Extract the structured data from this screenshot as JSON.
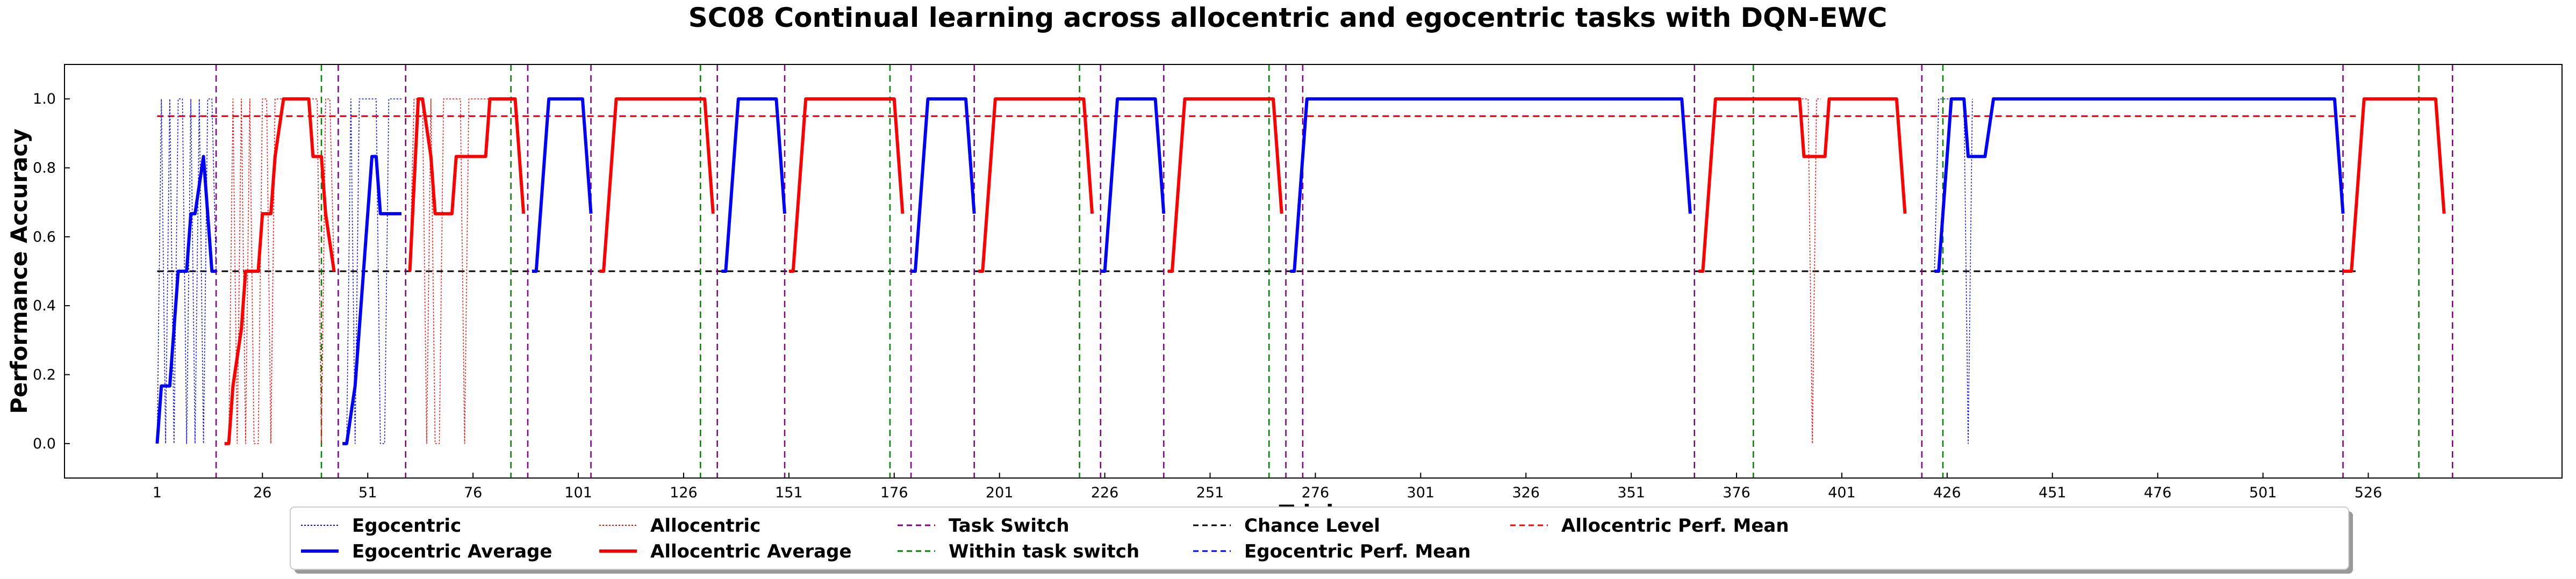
{
  "chart_data": {
    "type": "line",
    "title": "SC08 Continual learning across allocentric and egocentric tasks with DQN-EWC",
    "ylabel": "Performance Accuracy",
    "xlabel": "Trials",
    "xlim": [
      -21,
      572
    ],
    "ylim": [
      -0.1,
      1.1
    ],
    "x_ticks": [
      1,
      26,
      51,
      76,
      101,
      126,
      151,
      176,
      201,
      226,
      251,
      276,
      301,
      326,
      351,
      376,
      401,
      426,
      451,
      476,
      501,
      526
    ],
    "y_ticks": [
      "0.0",
      "0.2",
      "0.4",
      "0.6",
      "0.8",
      "1.0"
    ],
    "grid": false,
    "legend_position": "bottom-center",
    "colors": {
      "egocentric": "#0000ff",
      "allocentric": "#ff0000",
      "task_switch": "#800080",
      "within_task_switch": "#008000",
      "chance": "#000000"
    },
    "legend": [
      {
        "label": "Egocentric",
        "color": "#0000ff",
        "style": "dotted",
        "width": 1
      },
      {
        "label": "Egocentric Average",
        "color": "#0000ff",
        "style": "solid",
        "width": 6
      },
      {
        "label": "Allocentric",
        "color": "#ff0000",
        "style": "dotted",
        "width": 1
      },
      {
        "label": "Allocentric Average",
        "color": "#ff0000",
        "style": "solid",
        "width": 6
      },
      {
        "label": "Task Switch",
        "color": "#800080",
        "style": "dashed",
        "width": 2
      },
      {
        "label": "Within task switch",
        "color": "#008000",
        "style": "dashed",
        "width": 2
      },
      {
        "label": "Chance Level",
        "color": "#000000",
        "style": "dashed",
        "width": 2
      },
      {
        "label": "Egocentric Perf. Mean",
        "color": "#0000ff",
        "style": "dashed",
        "width": 2
      },
      {
        "label": "Allocentric Perf. Mean",
        "color": "#ff0000",
        "style": "dashed",
        "width": 2
      }
    ],
    "task_switches": [
      15,
      44,
      60,
      89,
      104,
      134,
      150,
      180,
      195,
      225,
      240,
      269,
      273,
      366,
      420,
      520,
      546
    ],
    "within_task_switches": [
      40,
      85,
      130,
      175,
      220,
      265,
      380,
      425,
      538
    ],
    "chance_level": {
      "value": 0.5,
      "x_range": [
        1,
        523
      ]
    },
    "egocentric_perf_mean": {
      "value": 0.95,
      "x_range": [
        1,
        523
      ]
    },
    "allocentric_perf_mean": {
      "value": 0.95,
      "x_range": [
        1,
        523
      ]
    },
    "series": [
      {
        "name": "Egocentric Average",
        "color": "#0000ff",
        "segments": [
          {
            "x": [
              1,
              2,
              4,
              6,
              8,
              9,
              10,
              12,
              14,
              15
            ],
            "y": [
              0.0,
              0.167,
              0.167,
              0.5,
              0.5,
              0.667,
              0.667,
              0.833,
              0.5,
              0.5
            ]
          },
          {
            "x": [
              45,
              46,
              48,
              50,
              51,
              52,
              53,
              54,
              55,
              57,
              59
            ],
            "y": [
              0.0,
              0.0,
              0.167,
              0.5,
              0.667,
              0.833,
              0.833,
              0.667,
              0.667,
              0.667,
              0.667
            ]
          },
          {
            "x": [
              90,
              91,
              94,
              102,
              104
            ],
            "y": [
              0.5,
              0.5,
              1.0,
              1.0,
              0.667
            ]
          },
          {
            "x": [
              135,
              136,
              139,
              148,
              150
            ],
            "y": [
              0.5,
              0.5,
              1.0,
              1.0,
              0.667
            ]
          },
          {
            "x": [
              180,
              181,
              184,
              193,
              195
            ],
            "y": [
              0.5,
              0.5,
              1.0,
              1.0,
              0.667
            ]
          },
          {
            "x": [
              225,
              226,
              229,
              238,
              240
            ],
            "y": [
              0.5,
              0.5,
              1.0,
              1.0,
              0.667
            ]
          },
          {
            "x": [
              270,
              271,
              274,
              363,
              365
            ],
            "y": [
              0.5,
              0.5,
              1.0,
              1.0,
              0.667
            ]
          },
          {
            "x": [
              423,
              424,
              427,
              430,
              431,
              434,
              435,
              437,
              518,
              520
            ],
            "y": [
              0.5,
              0.5,
              1.0,
              1.0,
              0.833,
              0.833,
              0.833,
              1.0,
              1.0,
              0.667
            ]
          }
        ]
      },
      {
        "name": "Allocentric Average",
        "color": "#ff0000",
        "segments": [
          {
            "x": [
              17,
              18,
              19,
              21,
              22,
              25,
              26,
              28,
              29,
              31,
              37,
              38,
              40,
              41,
              43
            ],
            "y": [
              0.0,
              0.0,
              0.167,
              0.333,
              0.5,
              0.5,
              0.667,
              0.667,
              0.833,
              1.0,
              1.0,
              0.833,
              0.833,
              0.667,
              0.5
            ]
          },
          {
            "x": [
              61,
              63,
              64,
              66,
              67,
              71,
              72,
              75,
              76,
              79,
              80,
              82,
              86,
              88
            ],
            "y": [
              0.5,
              1.0,
              1.0,
              0.833,
              0.667,
              0.667,
              0.833,
              0.833,
              0.833,
              0.833,
              1.0,
              1.0,
              1.0,
              0.667
            ]
          },
          {
            "x": [
              106,
              107,
              110,
              131,
              133
            ],
            "y": [
              0.5,
              0.5,
              1.0,
              1.0,
              0.667
            ]
          },
          {
            "x": [
              151,
              152,
              155,
              176,
              178
            ],
            "y": [
              0.5,
              0.5,
              1.0,
              1.0,
              0.667
            ]
          },
          {
            "x": [
              196,
              197,
              200,
              221,
              223
            ],
            "y": [
              0.5,
              0.5,
              1.0,
              1.0,
              0.667
            ]
          },
          {
            "x": [
              241,
              242,
              245,
              266,
              268
            ],
            "y": [
              0.5,
              0.5,
              1.0,
              1.0,
              0.667
            ]
          },
          {
            "x": [
              367,
              368,
              371,
              391,
              392,
              397,
              398,
              414,
              416
            ],
            "y": [
              0.5,
              0.5,
              1.0,
              1.0,
              0.833,
              0.833,
              1.0,
              1.0,
              0.667
            ]
          },
          {
            "x": [
              520,
              522,
              525,
              542,
              544
            ],
            "y": [
              0.5,
              0.5,
              1.0,
              1.0,
              0.667
            ]
          }
        ]
      },
      {
        "name": "Egocentric",
        "color": "#0000ff",
        "segments": [
          {
            "x": [
              1,
              2,
              3,
              4,
              5,
              6,
              7,
              8,
              9,
              10,
              11,
              12,
              13,
              14,
              15
            ],
            "y": [
              0,
              1,
              0,
              1,
              0,
              1,
              1,
              0,
              1,
              0,
              1,
              0,
              1,
              1,
              0.5
            ]
          },
          {
            "x": [
              45,
              46,
              47,
              48,
              49,
              50,
              51,
              52,
              53,
              54,
              55,
              56,
              57,
              58,
              59
            ],
            "y": [
              0,
              0,
              1,
              0,
              1,
              1,
              1,
              1,
              1,
              0,
              0,
              1,
              1,
              1,
              1
            ]
          },
          {
            "x": [
              423,
              424,
              425,
              426,
              427,
              428,
              429,
              430,
              431,
              432
            ],
            "y": [
              0.5,
              1,
              1,
              1,
              1,
              1,
              1,
              1,
              0,
              1
            ]
          }
        ]
      },
      {
        "name": "Allocentric",
        "color": "#ff0000",
        "segments": [
          {
            "x": [
              17,
              18,
              19,
              20,
              21,
              22,
              23,
              24,
              25,
              26,
              27,
              28,
              29,
              30,
              31,
              32,
              33,
              34,
              35,
              36,
              37,
              38,
              39,
              40,
              41,
              42,
              43
            ],
            "y": [
              0,
              0,
              1,
              0,
              1,
              0,
              1,
              0,
              0,
              1,
              1,
              0,
              1,
              1,
              1,
              1,
              1,
              1,
              1,
              1,
              1,
              1,
              1,
              0,
              1,
              1,
              0.5
            ]
          },
          {
            "x": [
              61,
              62,
              63,
              64,
              65,
              66,
              67,
              68,
              69,
              70,
              71,
              72,
              73,
              74,
              75,
              76,
              77,
              78,
              79,
              80
            ],
            "y": [
              0.5,
              1,
              1,
              1,
              0,
              1,
              0,
              0,
              1,
              1,
              1,
              1,
              1,
              0,
              1,
              1,
              1,
              1,
              1,
              1
            ]
          },
          {
            "x": [
              390,
              391,
              392,
              393,
              394,
              395,
              396
            ],
            "y": [
              1,
              1,
              1,
              1,
              0,
              1,
              1
            ]
          }
        ]
      }
    ]
  }
}
